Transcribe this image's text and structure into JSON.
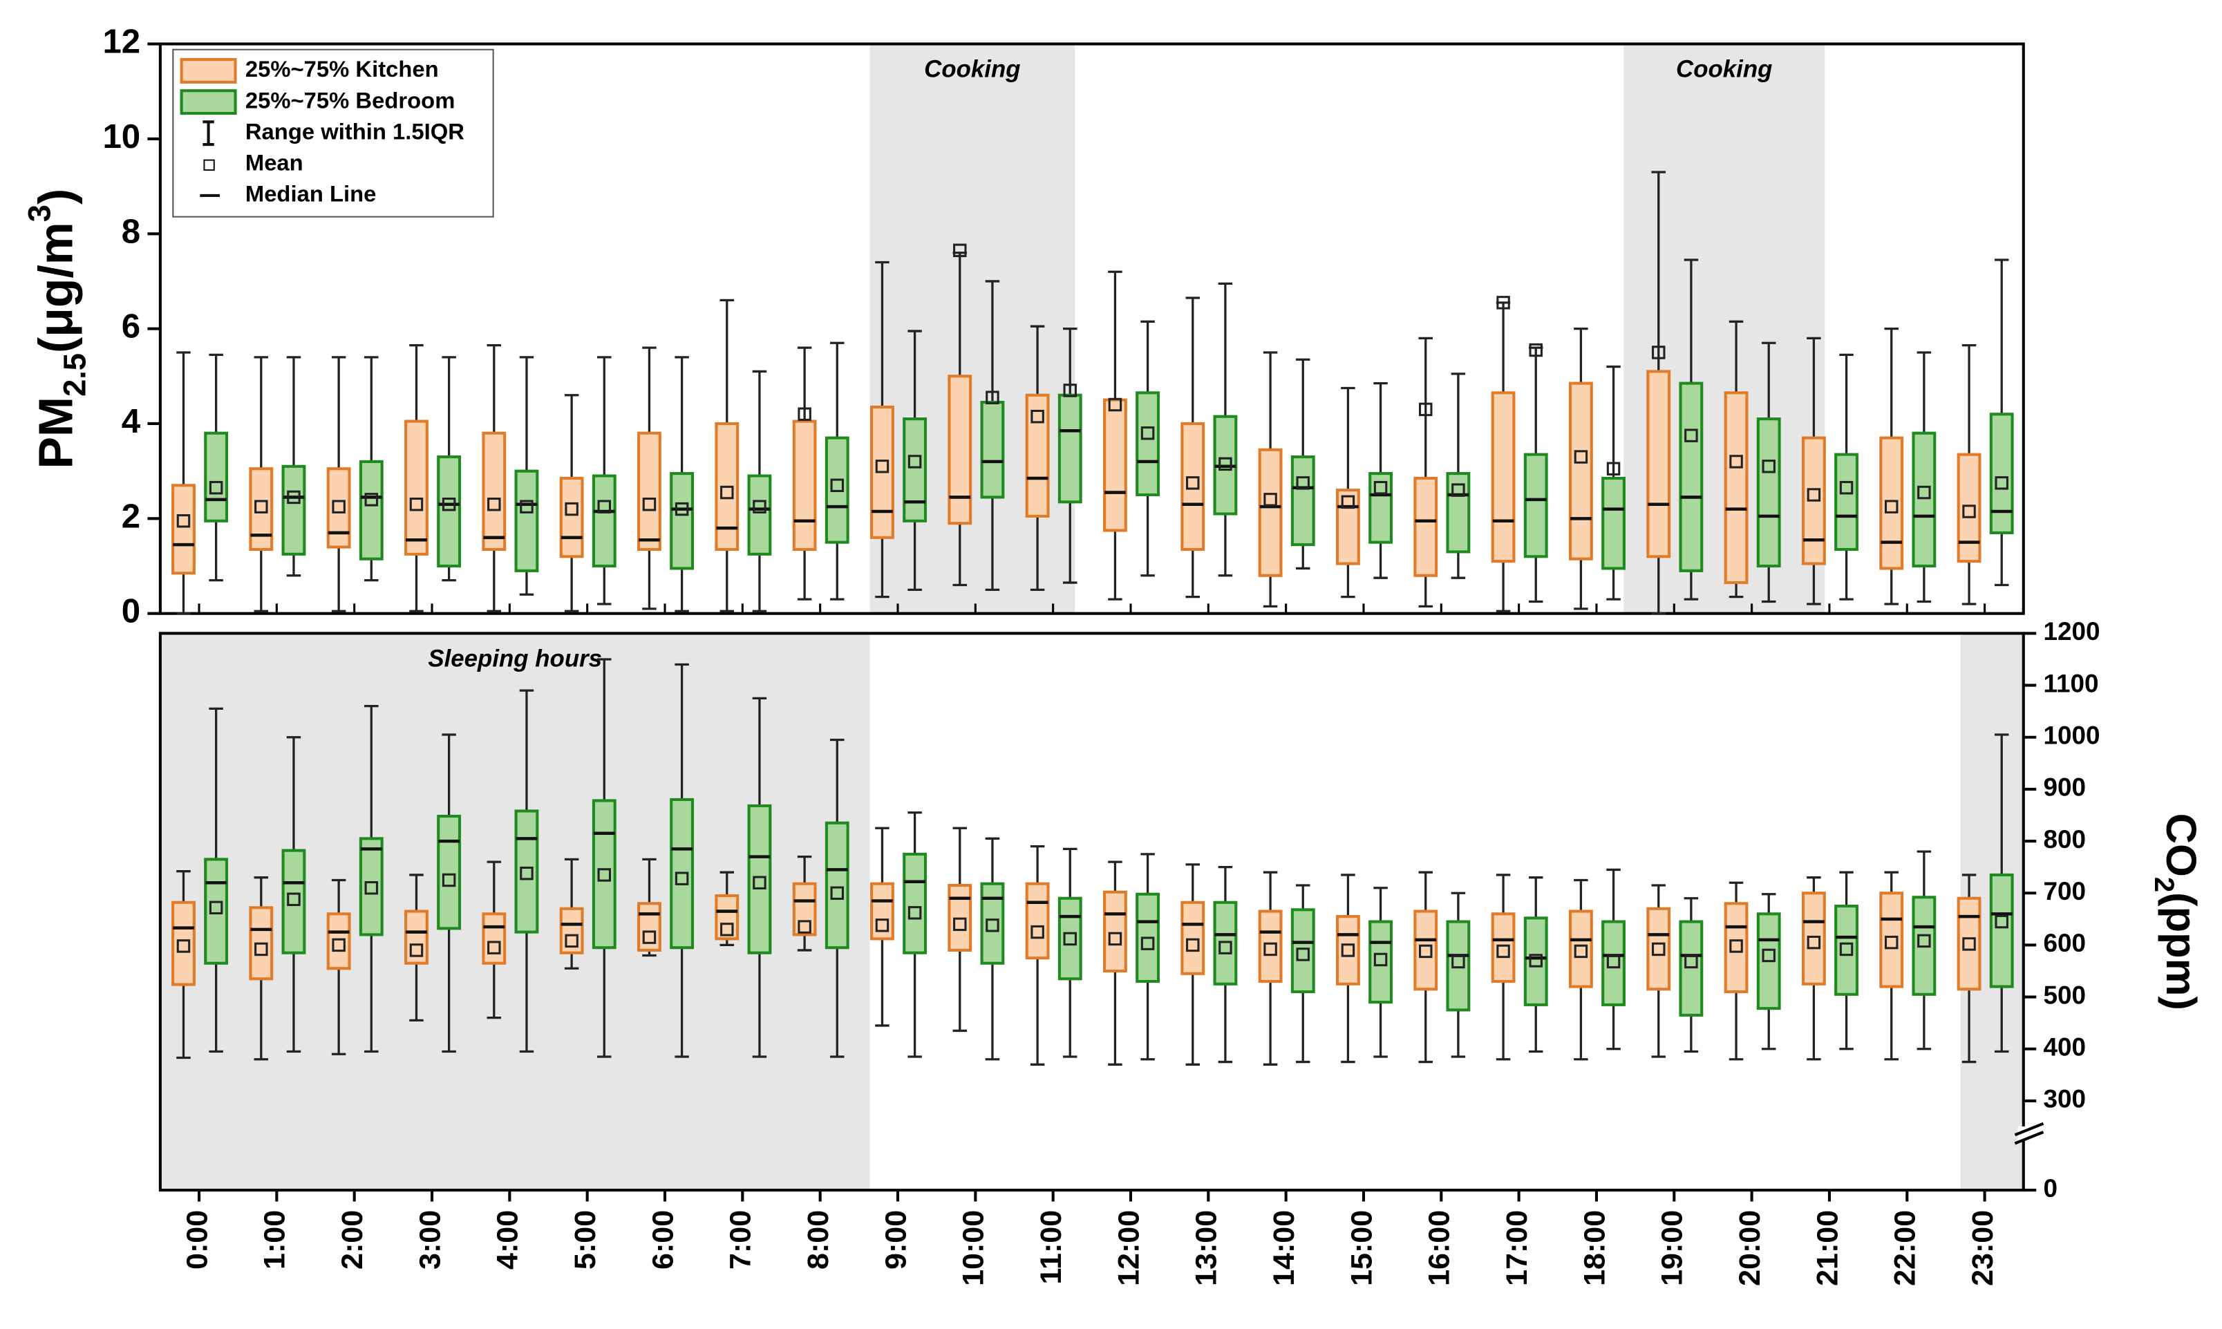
{
  "chart_data": [
    {
      "type": "box",
      "xlim": [
        -0.5,
        23.5
      ],
      "ylim": [
        0,
        12
      ],
      "yticks": [
        0,
        2,
        4,
        6,
        8,
        10,
        12
      ],
      "y_label": [
        {
          "text": "PM"
        },
        {
          "text": "2.5",
          "baseline": "sub"
        },
        {
          "text": "(μg/m"
        },
        {
          "text": "3",
          "baseline": "super"
        },
        {
          "text": ")"
        }
      ],
      "legend": {
        "position": "upper left",
        "items": [
          "Range within 1.5IQR",
          "Mean",
          "Median Line"
        ]
      },
      "shaded_regions": [
        {
          "label": "Cooking",
          "x": [
            8.64,
            11.28
          ]
        },
        {
          "label": "Cooking",
          "x": [
            18.35,
            20.94
          ]
        }
      ],
      "series": [
        {
          "name": "25%~75% Kitchen",
          "color": "#fbd3b0",
          "edge": "#e07b2a",
          "whisker_low": [
            0,
            0.05,
            0.05,
            0.05,
            0.05,
            0.05,
            0.1,
            0.05,
            0.3,
            0.35,
            0.6,
            0.5,
            0.3,
            0.35,
            0.15,
            0.35,
            0.15,
            0.05,
            0.1,
            0,
            0.35,
            0.2,
            0.2,
            0.2
          ],
          "q1": [
            0.85,
            1.35,
            1.4,
            1.25,
            1.35,
            1.2,
            1.35,
            1.35,
            1.35,
            1.6,
            1.9,
            2.05,
            1.75,
            1.35,
            0.8,
            1.05,
            0.8,
            1.1,
            1.15,
            1.2,
            0.65,
            1.05,
            0.95,
            1.1
          ],
          "median": [
            1.45,
            1.65,
            1.7,
            1.55,
            1.6,
            1.6,
            1.55,
            1.8,
            1.95,
            2.15,
            2.45,
            2.85,
            2.55,
            2.3,
            2.25,
            2.25,
            1.95,
            1.95,
            2,
            2.3,
            2.2,
            1.55,
            1.5,
            1.5
          ],
          "q3": [
            2.7,
            3.05,
            3.05,
            4.05,
            3.8,
            2.85,
            3.8,
            4,
            4.05,
            4.35,
            5,
            4.6,
            4.5,
            4,
            3.45,
            2.6,
            2.85,
            4.65,
            4.85,
            5.1,
            4.65,
            3.7,
            3.7,
            3.35
          ],
          "whisker_high": [
            5.5,
            5.4,
            5.4,
            5.65,
            5.65,
            4.6,
            5.6,
            6.6,
            5.6,
            7.4,
            7.6,
            6.05,
            7.2,
            6.65,
            5.5,
            4.75,
            5.8,
            6.55,
            6,
            9.3,
            6.15,
            5.8,
            6,
            5.65
          ],
          "mean": [
            1.95,
            2.25,
            2.25,
            2.3,
            2.3,
            2.2,
            2.3,
            2.55,
            4.2,
            3.1,
            7.65,
            4.15,
            4.4,
            2.75,
            2.4,
            2.35,
            4.3,
            6.55,
            3.3,
            5.5,
            3.2,
            2.5,
            2.25,
            2.15
          ]
        },
        {
          "name": "25%~75% Bedroom",
          "color": "#a8d89c",
          "edge": "#1f8a1f",
          "whisker_low": [
            0.7,
            0.8,
            0.7,
            0.7,
            0.4,
            0.2,
            0.05,
            0.05,
            0.3,
            0.5,
            0.5,
            0.65,
            0.8,
            0.8,
            0.95,
            0.75,
            0.75,
            0.25,
            0.3,
            0.3,
            0.25,
            0.3,
            0.25,
            0.6
          ],
          "q1": [
            1.95,
            1.25,
            1.15,
            1,
            0.9,
            1,
            0.95,
            1.25,
            1.5,
            1.95,
            2.45,
            2.35,
            2.5,
            2.1,
            1.45,
            1.5,
            1.3,
            1.2,
            0.95,
            0.9,
            1,
            1.35,
            1,
            1.7
          ],
          "median": [
            2.4,
            2.45,
            2.45,
            2.3,
            2.3,
            2.15,
            2.2,
            2.2,
            2.25,
            2.35,
            3.2,
            3.85,
            3.2,
            3.1,
            2.65,
            2.5,
            2.5,
            2.4,
            2.2,
            2.45,
            2.05,
            2.05,
            2.05,
            2.15
          ],
          "q3": [
            3.8,
            3.1,
            3.2,
            3.3,
            3,
            2.9,
            2.95,
            2.9,
            3.7,
            4.1,
            4.45,
            4.6,
            4.65,
            4.15,
            3.3,
            2.95,
            2.95,
            3.35,
            2.85,
            4.85,
            4.1,
            3.35,
            3.8,
            4.2
          ],
          "whisker_high": [
            5.45,
            5.4,
            5.4,
            5.4,
            5.4,
            5.4,
            5.4,
            5.1,
            5.7,
            5.95,
            7,
            6,
            6.15,
            6.95,
            5.35,
            4.85,
            5.05,
            5.6,
            5.2,
            7.45,
            5.7,
            5.45,
            5.5,
            7.45
          ],
          "mean": [
            2.65,
            2.45,
            2.4,
            2.3,
            2.25,
            2.25,
            2.2,
            2.25,
            2.7,
            3.2,
            4.55,
            4.7,
            3.8,
            3.15,
            2.75,
            2.65,
            2.6,
            5.55,
            3.05,
            3.75,
            3.1,
            2.65,
            2.55,
            2.75
          ]
        }
      ]
    },
    {
      "type": "box",
      "xlim": [
        -0.5,
        23.5
      ],
      "categories": [
        "0:00",
        "1:00",
        "2:00",
        "3:00",
        "4:00",
        "5:00",
        "6:00",
        "7:00",
        "8:00",
        "9:00",
        "10:00",
        "11:00",
        "12:00",
        "13:00",
        "14:00",
        "15:00",
        "16:00",
        "17:00",
        "18:00",
        "19:00",
        "20:00",
        "21:00",
        "22:00",
        "23:00"
      ],
      "ylim": [
        0,
        1200
      ],
      "yticks": [
        0,
        300,
        400,
        500,
        600,
        700,
        800,
        900,
        1000,
        1100,
        1200
      ],
      "axis_break": [
        0,
        270
      ],
      "y_label": [
        {
          "text": "CO"
        },
        {
          "text": "2",
          "baseline": "sub"
        },
        {
          "text": "(ppm)"
        }
      ],
      "shaded_regions": [
        {
          "label": "Sleeping hours",
          "x": [
            -0.5,
            8.64
          ]
        },
        {
          "x": [
            22.69,
            23.5
          ]
        }
      ],
      "series": [
        {
          "color": "#fbd3b0",
          "edge": "#e07b2a",
          "whisker_low": [
            383,
            380,
            390,
            455,
            460,
            555,
            580,
            600,
            590,
            445,
            435,
            370,
            370,
            370,
            370,
            375,
            375,
            380,
            380,
            385,
            380,
            380,
            380,
            375
          ],
          "q1": [
            524,
            535,
            555,
            565,
            565,
            585,
            590,
            612,
            620,
            612,
            590,
            575,
            550,
            545,
            530,
            525,
            515,
            530,
            520,
            515,
            510,
            525,
            520,
            515
          ],
          "median": [
            633,
            630,
            625,
            625,
            635,
            640,
            660,
            665,
            685,
            685,
            690,
            682,
            660,
            640,
            625,
            620,
            610,
            610,
            610,
            620,
            635,
            645,
            650,
            655
          ],
          "q3": [
            682,
            672,
            660,
            665,
            660,
            670,
            680,
            695,
            718,
            718,
            715,
            718,
            702,
            682,
            665,
            655,
            665,
            660,
            665,
            670,
            680,
            700,
            700,
            690
          ],
          "whisker_high": [
            742,
            730,
            725,
            735,
            760,
            765,
            765,
            740,
            770,
            825,
            825,
            790,
            760,
            755,
            740,
            735,
            740,
            735,
            725,
            715,
            720,
            730,
            740,
            735
          ],
          "mean": [
            598,
            592,
            600,
            590,
            595,
            608,
            615,
            630,
            635,
            638,
            640,
            625,
            612,
            600,
            592,
            590,
            588,
            588,
            588,
            592,
            598,
            605,
            605,
            602
          ]
        },
        {
          "color": "#a8d89c",
          "edge": "#1f8a1f",
          "whisker_low": [
            395,
            395,
            395,
            395,
            395,
            385,
            385,
            385,
            385,
            385,
            380,
            385,
            380,
            375,
            375,
            385,
            385,
            395,
            400,
            395,
            400,
            400,
            400,
            395
          ],
          "q1": [
            565,
            585,
            620,
            632,
            625,
            595,
            595,
            585,
            595,
            585,
            565,
            535,
            530,
            525,
            510,
            490,
            475,
            485,
            485,
            465,
            478,
            505,
            505,
            520
          ],
          "median": [
            720,
            720,
            785,
            800,
            805,
            815,
            785,
            770,
            745,
            722,
            690,
            655,
            645,
            620,
            605,
            605,
            580,
            575,
            580,
            580,
            610,
            615,
            635,
            660
          ],
          "q3": [
            765,
            782,
            805,
            848,
            858,
            878,
            880,
            868,
            835,
            775,
            718,
            690,
            698,
            682,
            668,
            645,
            645,
            652,
            645,
            645,
            660,
            675,
            692,
            735
          ],
          "whisker_high": [
            1055,
            1000,
            1060,
            1005,
            1090,
            1150,
            1140,
            1075,
            995,
            855,
            805,
            785,
            775,
            750,
            715,
            710,
            700,
            730,
            745,
            690,
            698,
            740,
            780,
            1005
          ],
          "mean": [
            672,
            688,
            710,
            725,
            738,
            735,
            728,
            720,
            700,
            662,
            638,
            612,
            603,
            595,
            582,
            572,
            568,
            570,
            568,
            568,
            580,
            592,
            608,
            645
          ]
        }
      ]
    }
  ]
}
